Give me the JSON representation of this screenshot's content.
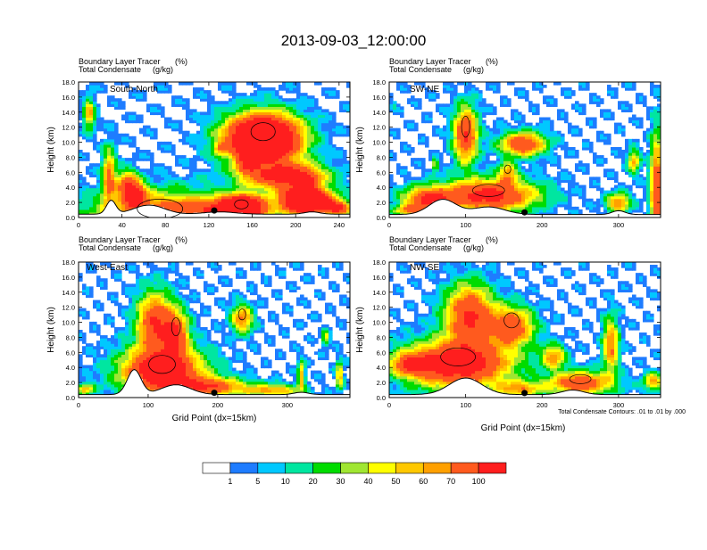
{
  "figure_title": "2013-09-03_12:00:00",
  "ylabel": "Height (km)",
  "xlabel": "Grid Point (dx=15km)",
  "contour_note": "Total Condensate Contours: .01 to .01 by .000",
  "colorbar": {
    "labels": [
      "1",
      "5",
      "10",
      "20",
      "30",
      "40",
      "50",
      "60",
      "70",
      "100"
    ],
    "colors": [
      "#ffffff",
      "#1e7cff",
      "#00c8ff",
      "#00e6a0",
      "#00dc00",
      "#a0e632",
      "#ffff00",
      "#ffc800",
      "#ffa000",
      "#ff5a1e",
      "#ff1e1e"
    ]
  },
  "chart_data": [
    {
      "type": "heatmap",
      "panel_label": "South-North",
      "subtitle_line1": "Boundary Layer Tracer",
      "subtitle_unit1": "(%)",
      "subtitle_line2": "Total Condensate",
      "subtitle_unit2": "(g/kg)",
      "xlim": [
        0,
        250
      ],
      "ylim": [
        0,
        18
      ],
      "xticks": [
        "0",
        "40",
        "80",
        "120",
        "160",
        "200",
        "240"
      ],
      "yticks": [
        "0.0",
        "2.0",
        "4.0",
        "6.0",
        "8.0",
        "10.0",
        "12.0",
        "14.0",
        "16.0",
        "18.0"
      ],
      "marker_x": 125,
      "blobs": [
        [
          75,
          0.2,
          3.2,
          60,
          1.4
        ],
        [
          130,
          1.2,
          1.4,
          40,
          0.8
        ],
        [
          150,
          1.3,
          1.5,
          18,
          3.7
        ],
        [
          210,
          2.2,
          1.6,
          22,
          3.5
        ],
        [
          170,
          10.5,
          3.0,
          32,
          3.6
        ],
        [
          190,
          5.5,
          1.8,
          35,
          1.8
        ],
        [
          10,
          13.8,
          2.0,
          5,
          1.0
        ],
        [
          28,
          5.5,
          3.6,
          6,
          1.2
        ],
        [
          45,
          4.5,
          1.8,
          10,
          1.2
        ],
        [
          52,
          3.0,
          1.5,
          10,
          1.6
        ],
        [
          130,
          9.3,
          0.8,
          5,
          0.6
        ],
        [
          155,
          7.0,
          1.3,
          9,
          0.9
        ],
        [
          210,
          5.0,
          1.2,
          10,
          0.9
        ],
        [
          240,
          1.3,
          0.9,
          12,
          1.6
        ]
      ],
      "terrain_peaks": [
        [
          30,
          1.8,
          6
        ],
        [
          65,
          1.2,
          20
        ],
        [
          130,
          0.3,
          20
        ],
        [
          215,
          0.3,
          10
        ]
      ],
      "terrain_base": 0.45
    },
    {
      "type": "heatmap",
      "panel_label": "SW-NE",
      "subtitle_line1": "Boundary Layer Tracer",
      "subtitle_unit1": "(%)",
      "subtitle_line2": "Total Condensate",
      "subtitle_unit2": "(g/kg)",
      "xlim": [
        0,
        355
      ],
      "ylim": [
        0,
        18
      ],
      "xticks": [
        "0",
        "100",
        "200",
        "300"
      ],
      "yticks": [
        "0.0",
        "2.0",
        "4.0",
        "6.0",
        "8.0",
        "10.0",
        "12.0",
        "14.0",
        "16.0",
        "18.0"
      ],
      "marker_x": 177,
      "blobs": [
        [
          130,
          3.0,
          2.0,
          60,
          1.9
        ],
        [
          50,
          2.5,
          1.5,
          30,
          1.5
        ],
        [
          100,
          11.0,
          3.5,
          15,
          1.7
        ],
        [
          175,
          9.8,
          1.5,
          28,
          1.6
        ],
        [
          155,
          6.0,
          1.4,
          12,
          1.0
        ],
        [
          350,
          3.5,
          7.0,
          8,
          1.6
        ],
        [
          320,
          7.5,
          1.5,
          8,
          1.0
        ],
        [
          300,
          2.0,
          1.2,
          15,
          1.2
        ],
        [
          30,
          1.0,
          0.7,
          25,
          1.0
        ],
        [
          5,
          14.8,
          0.5,
          2,
          0.8
        ],
        [
          60,
          7.0,
          0.8,
          4,
          0.8
        ]
      ],
      "terrain_peaks": [
        [
          70,
          2.0,
          25
        ],
        [
          130,
          1.0,
          30
        ],
        [
          300,
          0.5,
          12
        ]
      ],
      "terrain_base": 0.4
    },
    {
      "type": "heatmap",
      "panel_label": "West-East",
      "subtitle_line1": "Boundary Layer Tracer",
      "subtitle_unit1": "(%)",
      "subtitle_line2": "Total Condensate",
      "subtitle_unit2": "(g/kg)",
      "xlim": [
        0,
        390
      ],
      "ylim": [
        0,
        18
      ],
      "xticks": [
        "0",
        "100",
        "200",
        "300"
      ],
      "yticks": [
        "0.0",
        "2.0",
        "4.0",
        "6.0",
        "8.0",
        "10.0",
        "12.0",
        "14.0",
        "16.0",
        "18.0"
      ],
      "marker_x": 195,
      "blobs": [
        [
          120,
          3.5,
          3.0,
          55,
          2.2
        ],
        [
          110,
          10.0,
          3.8,
          25,
          1.6
        ],
        [
          140,
          8.5,
          3.0,
          18,
          1.4
        ],
        [
          190,
          1.5,
          1.2,
          50,
          1.4
        ],
        [
          235,
          10.5,
          1.8,
          15,
          1.2
        ],
        [
          280,
          1.0,
          0.8,
          40,
          1.0
        ],
        [
          320,
          3.0,
          1.8,
          5,
          1.0
        ],
        [
          355,
          8.0,
          1.0,
          5,
          0.8
        ],
        [
          375,
          3.0,
          1.8,
          5,
          1.0
        ],
        [
          10,
          1.2,
          0.7,
          12,
          1.0
        ]
      ],
      "terrain_peaks": [
        [
          80,
          3.3,
          14
        ],
        [
          140,
          1.3,
          30
        ],
        [
          320,
          0.3,
          15
        ]
      ],
      "terrain_base": 0.4
    },
    {
      "type": "heatmap",
      "panel_label": "NW-SE",
      "subtitle_line1": "Boundary Layer Tracer",
      "subtitle_unit1": "(%)",
      "subtitle_line2": "Total Condensate",
      "subtitle_unit2": "(g/kg)",
      "xlim": [
        0,
        355
      ],
      "ylim": [
        0,
        18
      ],
      "xticks": [
        "0",
        "100",
        "200",
        "300"
      ],
      "yticks": [
        "0.0",
        "2.0",
        "4.0",
        "6.0",
        "8.0",
        "10.0",
        "12.0",
        "14.0",
        "16.0",
        "18.0"
      ],
      "marker_x": 177,
      "blobs": [
        [
          90,
          4.5,
          3.0,
          65,
          2.1
        ],
        [
          105,
          11.0,
          3.8,
          30,
          1.7
        ],
        [
          160,
          9.5,
          2.5,
          28,
          1.5
        ],
        [
          215,
          5.5,
          1.5,
          15,
          1.1
        ],
        [
          250,
          2.0,
          1.5,
          40,
          1.5
        ],
        [
          290,
          7.0,
          3.5,
          10,
          1.2
        ],
        [
          30,
          4.5,
          1.3,
          25,
          1.3
        ],
        [
          345,
          2.2,
          1.2,
          12,
          1.0
        ],
        [
          170,
          1.2,
          1.0,
          30,
          1.0
        ]
      ],
      "terrain_peaks": [
        [
          100,
          2.2,
          30
        ],
        [
          240,
          0.6,
          20
        ]
      ],
      "terrain_base": 0.4
    }
  ]
}
